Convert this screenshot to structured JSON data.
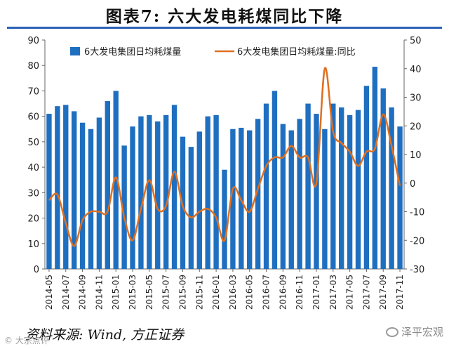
{
  "title": "图表7:  六大发电耗煤同比下降",
  "source": "资料来源: Wind, 方正证券",
  "watermark_left": "© 大宗点评",
  "watermark_right": "泽平宏观",
  "colors": {
    "bar": "#1f6fc0",
    "line": "#e07020",
    "title_rule": "#2a62b8"
  },
  "chart_data": {
    "type": "bar+line",
    "categories": [
      "2014-05",
      "2014-06",
      "2014-07",
      "2014-08",
      "2014-09",
      "2014-10",
      "2014-11",
      "2014-12",
      "2015-01",
      "2015-02",
      "2015-03",
      "2015-04",
      "2015-05",
      "2015-06",
      "2015-07",
      "2015-08",
      "2015-09",
      "2015-10",
      "2015-11",
      "2015-12",
      "2016-01",
      "2016-02",
      "2016-03",
      "2016-04",
      "2016-05",
      "2016-06",
      "2016-07",
      "2016-08",
      "2016-09",
      "2016-10",
      "2016-11",
      "2016-12",
      "2017-01",
      "2017-02",
      "2017-03",
      "2017-04",
      "2017-05",
      "2017-06",
      "2017-07",
      "2017-08",
      "2017-09",
      "2017-10",
      "2017-11"
    ],
    "x_tick_labels": [
      "2014-05",
      "2014-07",
      "2014-09",
      "2014-11",
      "2015-01",
      "2015-03",
      "2015-05",
      "2015-07",
      "2015-09",
      "2015-11",
      "2016-01",
      "2016-03",
      "2016-05",
      "2016-07",
      "2016-09",
      "2016-11",
      "2017-01",
      "2017-03",
      "2017-05",
      "2017-07",
      "2017-09",
      "2017-11"
    ],
    "series": [
      {
        "name": "6大发电集团日均耗煤量",
        "axis": "left",
        "kind": "bar",
        "values": [
          61,
          64,
          64.5,
          62,
          57.5,
          55,
          59.5,
          66,
          70,
          48.5,
          56,
          60,
          60.5,
          58,
          60.5,
          64.5,
          52,
          48,
          54,
          60,
          60.5,
          39,
          55,
          55.5,
          54.5,
          59,
          65,
          70,
          57,
          54.5,
          59,
          65,
          61,
          55,
          65,
          63.5,
          60.5,
          62.5,
          72,
          79.5,
          71,
          63.5,
          56
        ]
      },
      {
        "name": "6大发电集团日均耗煤量:同比",
        "axis": "right",
        "kind": "line",
        "values": [
          -6,
          -4,
          -14,
          -22,
          -13,
          -10,
          -10,
          -10,
          2,
          -12,
          -20,
          -9,
          1,
          -9,
          -8,
          4,
          -8,
          -12,
          -10,
          -9,
          -12,
          -20,
          -2,
          -6,
          -10,
          -2,
          6,
          9,
          9,
          13,
          9,
          9,
          0,
          40,
          18,
          14,
          11,
          6,
          11,
          12,
          24,
          13,
          -1
        ]
      }
    ],
    "left_axis": {
      "min": 0,
      "max": 90,
      "step": 10
    },
    "right_axis": {
      "min": -30,
      "max": 50,
      "step": 10
    },
    "legend": {
      "position": "top",
      "entries": [
        "6大发电集团日均耗煤量",
        "6大发电集团日均耗煤量:同比"
      ]
    },
    "grid": false
  }
}
